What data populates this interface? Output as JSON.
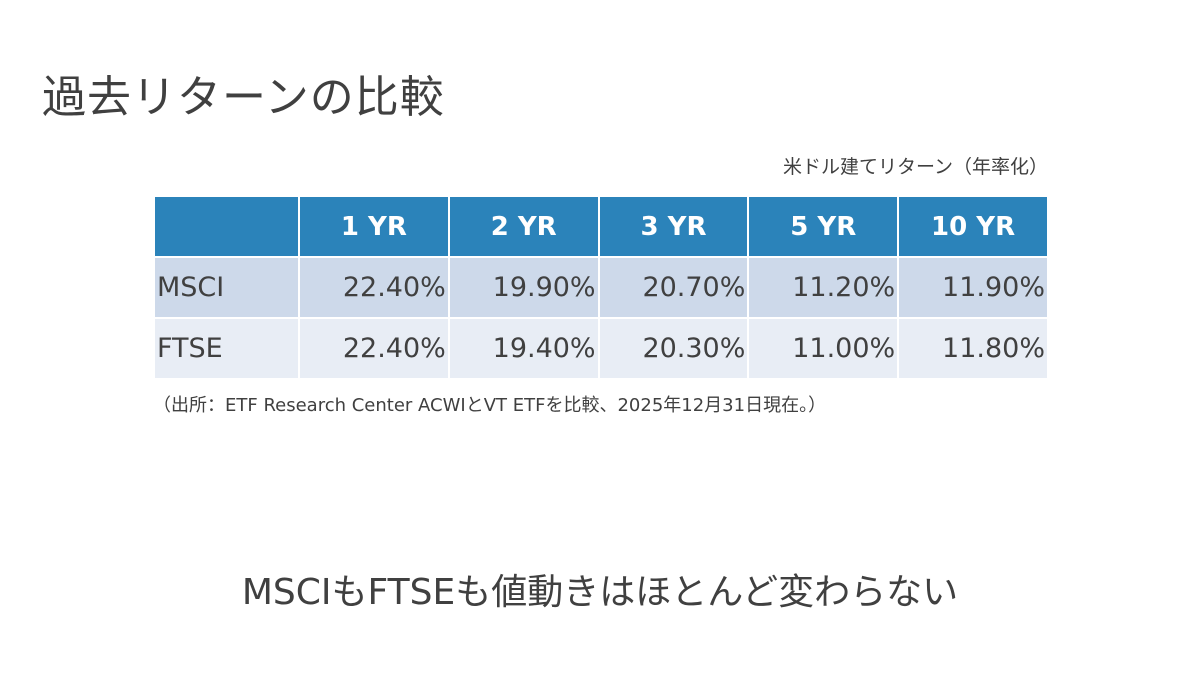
{
  "slide": {
    "title": "過去リターンの比較",
    "unit_note": "米ドル建てリターン（年率化）",
    "source_note": "（出所：ETF Research Center ACWIとVT ETFを比較、2025年12月31日現在。）",
    "conclusion": "MSCIもFTSEも値動きはほとんど変わらない"
  },
  "table": {
    "headers": [
      "",
      "1 YR",
      "2 YR",
      "3 YR",
      "5 YR",
      "10 YR"
    ],
    "rows": [
      {
        "label": "MSCI",
        "values": [
          "22.40%",
          "19.90%",
          "20.70%",
          "11.20%",
          "11.90%"
        ]
      },
      {
        "label": "FTSE",
        "values": [
          "22.40%",
          "19.40%",
          "20.30%",
          "11.00%",
          "11.80%"
        ]
      }
    ]
  },
  "colors": {
    "header_bg": "#2b83ba",
    "row_msci_bg": "#cdd9ea",
    "row_ftse_bg": "#e8edf5",
    "text": "#404040"
  }
}
